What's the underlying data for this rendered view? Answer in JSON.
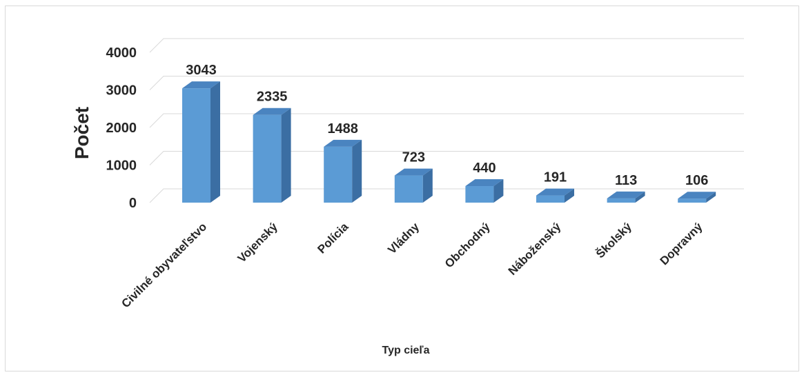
{
  "chart_data": {
    "type": "bar",
    "title": "",
    "xlabel": "Typ cieľa",
    "ylabel": "Počet",
    "categories": [
      "Civilné obyvateľstvo",
      "Vojenský",
      "Polícia",
      "Vládny",
      "Obchodný",
      "Náboženský",
      "Školský",
      "Dopravný"
    ],
    "values": [
      3043,
      2335,
      1488,
      723,
      440,
      191,
      113,
      106
    ],
    "ylim": [
      0,
      4000
    ],
    "yticks": [
      "0",
      "1000",
      "2000",
      "3000",
      "4000"
    ],
    "grid": true,
    "legend": "none",
    "data_labels": true,
    "bar_color": "#5b9bd5",
    "bar_side_color": "#3b6ea3",
    "bar_top_color": "#4a84c0",
    "grid_color": "#d9d9d9",
    "text_color": "#262626"
  }
}
